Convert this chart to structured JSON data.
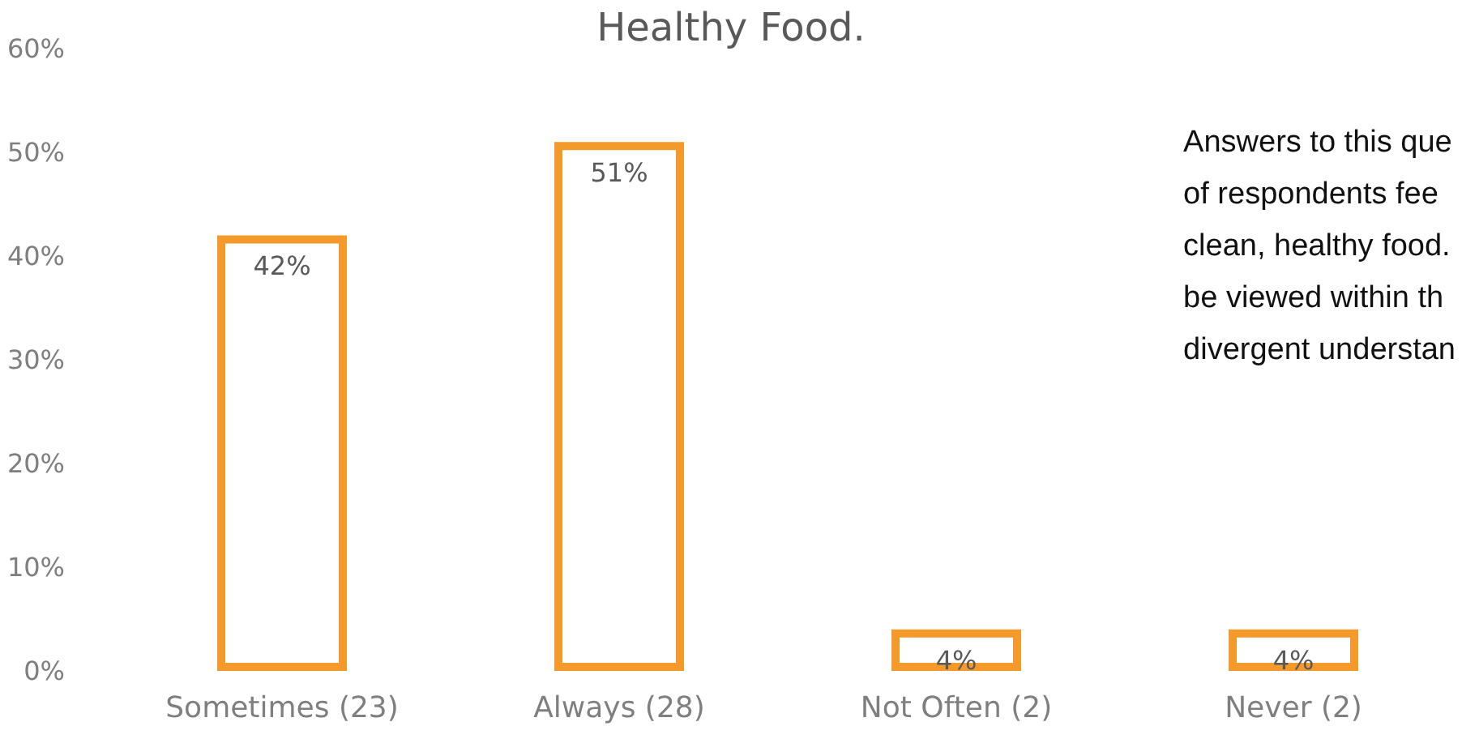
{
  "chart_data": {
    "type": "bar",
    "title": "Healthy Food.",
    "categories": [
      "Sometimes (23)",
      "Always (28)",
      "Not Often (2)",
      "Never (2)"
    ],
    "values": [
      42,
      51,
      4,
      4
    ],
    "color": "#f39a2b",
    "value_labels": [
      "42%",
      "51%",
      "4%",
      "4%"
    ],
    "ylim": [
      0,
      60
    ],
    "yticks": [
      {
        "value": 0,
        "label": "0%"
      },
      {
        "value": 10,
        "label": "10%"
      },
      {
        "value": 20,
        "label": "20%"
      },
      {
        "value": 30,
        "label": "30%"
      },
      {
        "value": 40,
        "label": "40%"
      },
      {
        "value": 50,
        "label": "50%"
      },
      {
        "value": 60,
        "label": "60%"
      }
    ],
    "grid": false,
    "annotations": [
      "Answers to this que\nof respondents fee\nclean, healthy food.\nbe viewed within th\ndivergent understan"
    ]
  }
}
